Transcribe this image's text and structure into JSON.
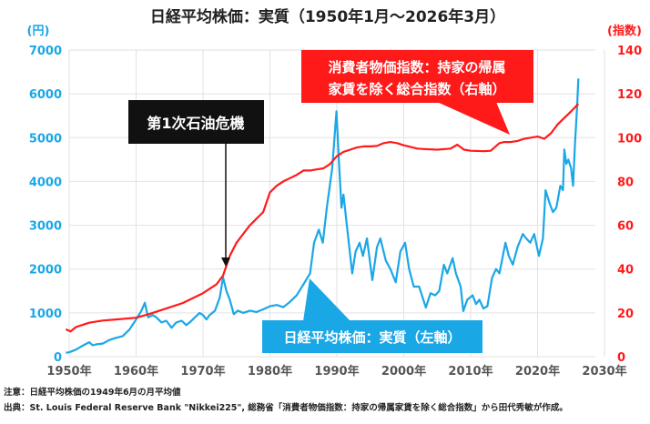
{
  "chart_data": {
    "type": "line",
    "title": "日経平均株価：実質（1950年1月～2026年3月）",
    "left_axis_unit": "(円)",
    "right_axis_unit": "(指数)",
    "xlim": [
      1950,
      2030
    ],
    "ylim_left": [
      0,
      7000
    ],
    "ylim_right": [
      0,
      140
    ],
    "x_ticks": [
      "1950年",
      "1960年",
      "1970年",
      "1980年",
      "1990年",
      "2000年",
      "2010年",
      "2020年",
      "2030年"
    ],
    "y_ticks_left": [
      "0",
      "1000",
      "2000",
      "3000",
      "4000",
      "5000",
      "6000",
      "7000"
    ],
    "y_ticks_right": [
      "0",
      "20",
      "40",
      "60",
      "80",
      "100",
      "120",
      "140"
    ],
    "grid": true,
    "colors": {
      "nikkei": "#1aa7e6",
      "cpi": "#ff1a1a",
      "annotation": "#000000"
    },
    "series": [
      {
        "name": "日経平均株価：実質（左軸）",
        "axis": "left",
        "points": [
          [
            1949.5,
            90
          ],
          [
            1950,
            100
          ],
          [
            1951,
            160
          ],
          [
            1952,
            250
          ],
          [
            1953,
            330
          ],
          [
            1953.5,
            260
          ],
          [
            1954,
            280
          ],
          [
            1955,
            300
          ],
          [
            1956,
            380
          ],
          [
            1957,
            430
          ],
          [
            1958,
            470
          ],
          [
            1959,
            620
          ],
          [
            1960,
            850
          ],
          [
            1960.8,
            1050
          ],
          [
            1961.3,
            1230
          ],
          [
            1961.8,
            900
          ],
          [
            1962.5,
            950
          ],
          [
            1963,
            900
          ],
          [
            1963.8,
            780
          ],
          [
            1964.5,
            820
          ],
          [
            1965.3,
            660
          ],
          [
            1966,
            780
          ],
          [
            1966.8,
            820
          ],
          [
            1967.5,
            720
          ],
          [
            1968,
            780
          ],
          [
            1968.8,
            900
          ],
          [
            1969.5,
            1000
          ],
          [
            1970,
            950
          ],
          [
            1970.5,
            850
          ],
          [
            1971,
            950
          ],
          [
            1971.8,
            1050
          ],
          [
            1972.5,
            1350
          ],
          [
            1973.0,
            1810
          ],
          [
            1973.5,
            1500
          ],
          [
            1974,
            1300
          ],
          [
            1974.6,
            970
          ],
          [
            1975.2,
            1050
          ],
          [
            1976,
            1000
          ],
          [
            1977,
            1050
          ],
          [
            1978,
            1020
          ],
          [
            1979,
            1080
          ],
          [
            1980,
            1150
          ],
          [
            1981,
            1180
          ],
          [
            1982,
            1130
          ],
          [
            1983,
            1250
          ],
          [
            1984,
            1400
          ],
          [
            1985,
            1650
          ],
          [
            1986,
            1900
          ],
          [
            1986.6,
            2600
          ],
          [
            1987.3,
            2900
          ],
          [
            1987.9,
            2600
          ],
          [
            1988.5,
            3400
          ],
          [
            1989.3,
            4300
          ],
          [
            1989.95,
            5600
          ],
          [
            1990.3,
            4500
          ],
          [
            1990.7,
            3400
          ],
          [
            1991,
            3700
          ],
          [
            1991.5,
            3000
          ],
          [
            1992.3,
            1900
          ],
          [
            1992.8,
            2400
          ],
          [
            1993.4,
            2600
          ],
          [
            1993.9,
            2300
          ],
          [
            1994.5,
            2700
          ],
          [
            1995.3,
            1750
          ],
          [
            1996,
            2500
          ],
          [
            1996.5,
            2700
          ],
          [
            1997.3,
            2200
          ],
          [
            1998,
            2000
          ],
          [
            1998.8,
            1700
          ],
          [
            1999.5,
            2400
          ],
          [
            2000.2,
            2600
          ],
          [
            2000.8,
            2000
          ],
          [
            2001.5,
            1600
          ],
          [
            2002.3,
            1600
          ],
          [
            2003.3,
            1120
          ],
          [
            2004,
            1450
          ],
          [
            2004.7,
            1400
          ],
          [
            2005.3,
            1500
          ],
          [
            2006,
            2100
          ],
          [
            2006.5,
            1900
          ],
          [
            2007.3,
            2250
          ],
          [
            2007.8,
            1900
          ],
          [
            2008.5,
            1600
          ],
          [
            2008.9,
            1040
          ],
          [
            2009.5,
            1300
          ],
          [
            2010.3,
            1400
          ],
          [
            2010.8,
            1200
          ],
          [
            2011.3,
            1300
          ],
          [
            2011.9,
            1100
          ],
          [
            2012.5,
            1150
          ],
          [
            2013.2,
            1800
          ],
          [
            2013.8,
            2000
          ],
          [
            2014.3,
            1900
          ],
          [
            2015.2,
            2600
          ],
          [
            2015.7,
            2300
          ],
          [
            2016.3,
            2100
          ],
          [
            2017,
            2500
          ],
          [
            2017.8,
            2800
          ],
          [
            2018.3,
            2700
          ],
          [
            2018.9,
            2600
          ],
          [
            2019.5,
            2800
          ],
          [
            2020.2,
            2300
          ],
          [
            2020.8,
            2700
          ],
          [
            2021.2,
            3800
          ],
          [
            2021.8,
            3500
          ],
          [
            2022.3,
            3300
          ],
          [
            2022.8,
            3400
          ],
          [
            2023.4,
            3900
          ],
          [
            2023.8,
            3800
          ],
          [
            2024.0,
            4730
          ],
          [
            2024.3,
            4400
          ],
          [
            2024.6,
            4500
          ],
          [
            2025.0,
            4300
          ],
          [
            2025.3,
            3900
          ],
          [
            2025.6,
            4900
          ],
          [
            2025.9,
            5700
          ],
          [
            2026.1,
            6350
          ]
        ]
      },
      {
        "name": "消費者物価指数：持家の帰属家賃を除く総合指数（右軸）",
        "axis": "right",
        "points": [
          [
            1949.5,
            12.5
          ],
          [
            1950.2,
            11.5
          ],
          [
            1951,
            13.5
          ],
          [
            1952,
            14.5
          ],
          [
            1953,
            15.5
          ],
          [
            1955,
            16.5
          ],
          [
            1957,
            17
          ],
          [
            1960,
            17.8
          ],
          [
            1962,
            19.5
          ],
          [
            1965,
            22.5
          ],
          [
            1967,
            24.5
          ],
          [
            1970,
            29
          ],
          [
            1972,
            33
          ],
          [
            1973,
            37
          ],
          [
            1974,
            46
          ],
          [
            1975,
            52
          ],
          [
            1976,
            56
          ],
          [
            1977,
            60
          ],
          [
            1978,
            63
          ],
          [
            1979,
            66
          ],
          [
            1980,
            75
          ],
          [
            1981,
            78
          ],
          [
            1982,
            80
          ],
          [
            1983,
            81.5
          ],
          [
            1984,
            83
          ],
          [
            1985,
            85
          ],
          [
            1986,
            85
          ],
          [
            1987,
            85.5
          ],
          [
            1988,
            86
          ],
          [
            1989,
            88
          ],
          [
            1990,
            91.5
          ],
          [
            1991,
            93.5
          ],
          [
            1992,
            94.5
          ],
          [
            1993,
            95.5
          ],
          [
            1994,
            96
          ],
          [
            1995,
            96
          ],
          [
            1996,
            96.2
          ],
          [
            1997,
            97.5
          ],
          [
            1998,
            98
          ],
          [
            1999,
            97.5
          ],
          [
            2000,
            96.5
          ],
          [
            2001,
            95.8
          ],
          [
            2002,
            95
          ],
          [
            2003,
            94.8
          ],
          [
            2005,
            94.5
          ],
          [
            2007,
            95
          ],
          [
            2008,
            96.8
          ],
          [
            2009,
            94.5
          ],
          [
            2010,
            94
          ],
          [
            2012,
            93.8
          ],
          [
            2013,
            94
          ],
          [
            2014.3,
            97.5
          ],
          [
            2015,
            98
          ],
          [
            2016,
            98
          ],
          [
            2017,
            98.5
          ],
          [
            2018,
            99.5
          ],
          [
            2019,
            100
          ],
          [
            2020,
            100.5
          ],
          [
            2021,
            99.5
          ],
          [
            2022,
            102
          ],
          [
            2023,
            106
          ],
          [
            2024,
            109
          ],
          [
            2025,
            112
          ],
          [
            2026.1,
            115.4
          ]
        ]
      }
    ],
    "annotations": {
      "oil_shock": "第1次石油危機",
      "cpi_label_line1": "消費者物価指数：持家の帰属",
      "cpi_label_line2": "家賃を除く総合指数（右軸）",
      "nikkei_label": "日経平均株価：実質（左軸）"
    }
  },
  "notes": {
    "caution": "注意：日経平均株価の1949年6月の月平均値",
    "source": "出典：St. Louis Federal Reserve Bank \"Nikkei225\", 総務省「消費者物価指数：持家の帰属家賃を除く総合指数」から田代秀敏が作成。"
  }
}
